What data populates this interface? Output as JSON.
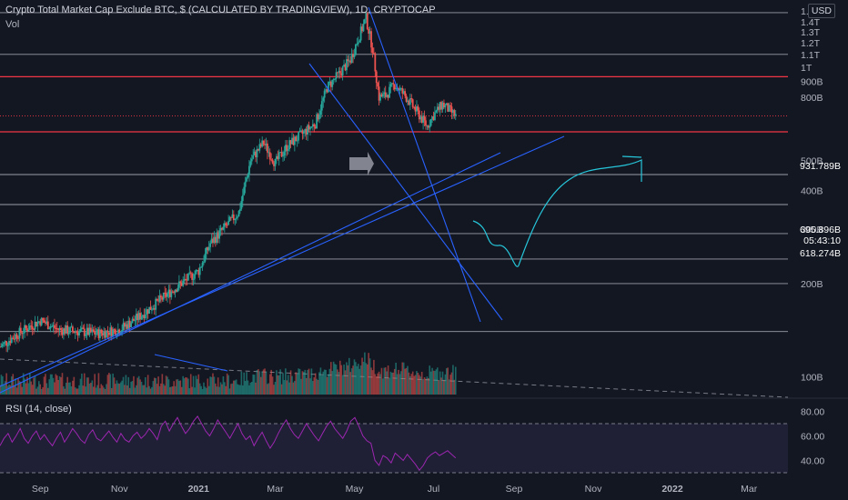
{
  "header": {
    "title": "Crypto Total Market Cap Exclude BTC, $ (CALCULATED BY TRADINGVIEW), 1D, CRYPTOCAP",
    "volume_label": "Vol",
    "currency": "USD"
  },
  "rsi_panel": {
    "title": "RSI (14, close)",
    "ticks": [
      "80.00",
      "60.00",
      "40.00"
    ],
    "levels": {
      "upper": 70,
      "lower": 30
    },
    "values": [
      52,
      58,
      62,
      55,
      60,
      66,
      58,
      54,
      60,
      64,
      57,
      61,
      56,
      52,
      58,
      63,
      55,
      60,
      66,
      62,
      57,
      54,
      61,
      65,
      58,
      56,
      60,
      64,
      59,
      55,
      62,
      57,
      55,
      60,
      63,
      58,
      61,
      66,
      62,
      57,
      68,
      72,
      64,
      70,
      75,
      68,
      62,
      66,
      72,
      76,
      70,
      64,
      60,
      66,
      73,
      68,
      63,
      58,
      64,
      70,
      62,
      57,
      60,
      52,
      58,
      63,
      56,
      50,
      55,
      62,
      68,
      73,
      66,
      61,
      58,
      64,
      70,
      65,
      60,
      56,
      62,
      68,
      72,
      66,
      62,
      58,
      64,
      72,
      75,
      68,
      60,
      56,
      54,
      40,
      36,
      44,
      42,
      38,
      46,
      43,
      40,
      45,
      41,
      37,
      32,
      36,
      42,
      45,
      47,
      44,
      46,
      48,
      45,
      42
    ],
    "color": "#9c27b0"
  },
  "price_axis": {
    "top_label": "1.",
    "ticks": [
      "1.4T",
      "1.3T",
      "1.2T",
      "1.1T",
      "1T",
      "900B",
      "800B",
      "500B",
      "400B",
      "300B",
      "200B",
      "100B"
    ]
  },
  "time_axis": {
    "ticks": [
      "Sep",
      "Nov",
      "2021",
      "Mar",
      "May",
      "Jul",
      "Sep",
      "Nov",
      "2022",
      "Mar"
    ]
  },
  "price_badges": [
    {
      "text": "931.789B",
      "color": "#f23645"
    },
    {
      "text": "695.896B",
      "color": "#f23645"
    },
    {
      "text": "05:43:10",
      "color": "#f23645"
    },
    {
      "text": "618.274B",
      "color": "#f23645"
    }
  ],
  "colors": {
    "up": "#26a69a",
    "down": "#ef5350",
    "trendline": "#2962ff",
    "forecast": "#26c6da",
    "background": "#131722"
  },
  "chart_data": {
    "type": "candlestick",
    "title": "Crypto Total Market Cap Exclude BTC, $ (CALCULATED BY TRADINGVIEW), 1D, CRYPTOCAP",
    "y_scale": "log",
    "y_range": [
      90,
      1520
    ],
    "y_unit": "B",
    "x_range": [
      "2020-08-01",
      "2022-03-31"
    ],
    "grid": false,
    "horizontal_levels": [
      1500,
      1100,
      931.789,
      695.896,
      618.274,
      450,
      360,
      290,
      240,
      200,
      140
    ],
    "last_price": 695.896,
    "close_series": {
      "dates": [
        "2020-08-01",
        "2020-08-15",
        "2020-09-01",
        "2020-09-15",
        "2020-10-01",
        "2020-10-15",
        "2020-11-01",
        "2020-11-15",
        "2020-12-01",
        "2020-12-15",
        "2021-01-01",
        "2021-01-10",
        "2021-01-20",
        "2021-02-01",
        "2021-02-10",
        "2021-02-20",
        "2021-03-01",
        "2021-03-10",
        "2021-03-20",
        "2021-04-01",
        "2021-04-10",
        "2021-04-20",
        "2021-04-28",
        "2021-05-05",
        "2021-05-10",
        "2021-05-15",
        "2021-05-20",
        "2021-05-25",
        "2021-06-01",
        "2021-06-10",
        "2021-06-20",
        "2021-06-26",
        "2021-07-01",
        "2021-07-08",
        "2021-07-14",
        "2021-07-18"
      ],
      "values": [
        125,
        138,
        152,
        142,
        140,
        138,
        142,
        155,
        175,
        195,
        220,
        270,
        300,
        340,
        500,
        570,
        490,
        555,
        600,
        660,
        860,
        960,
        1060,
        1270,
        1440,
        1150,
        800,
        810,
        880,
        800,
        700,
        645,
        700,
        760,
        720,
        696
      ]
    }
  }
}
